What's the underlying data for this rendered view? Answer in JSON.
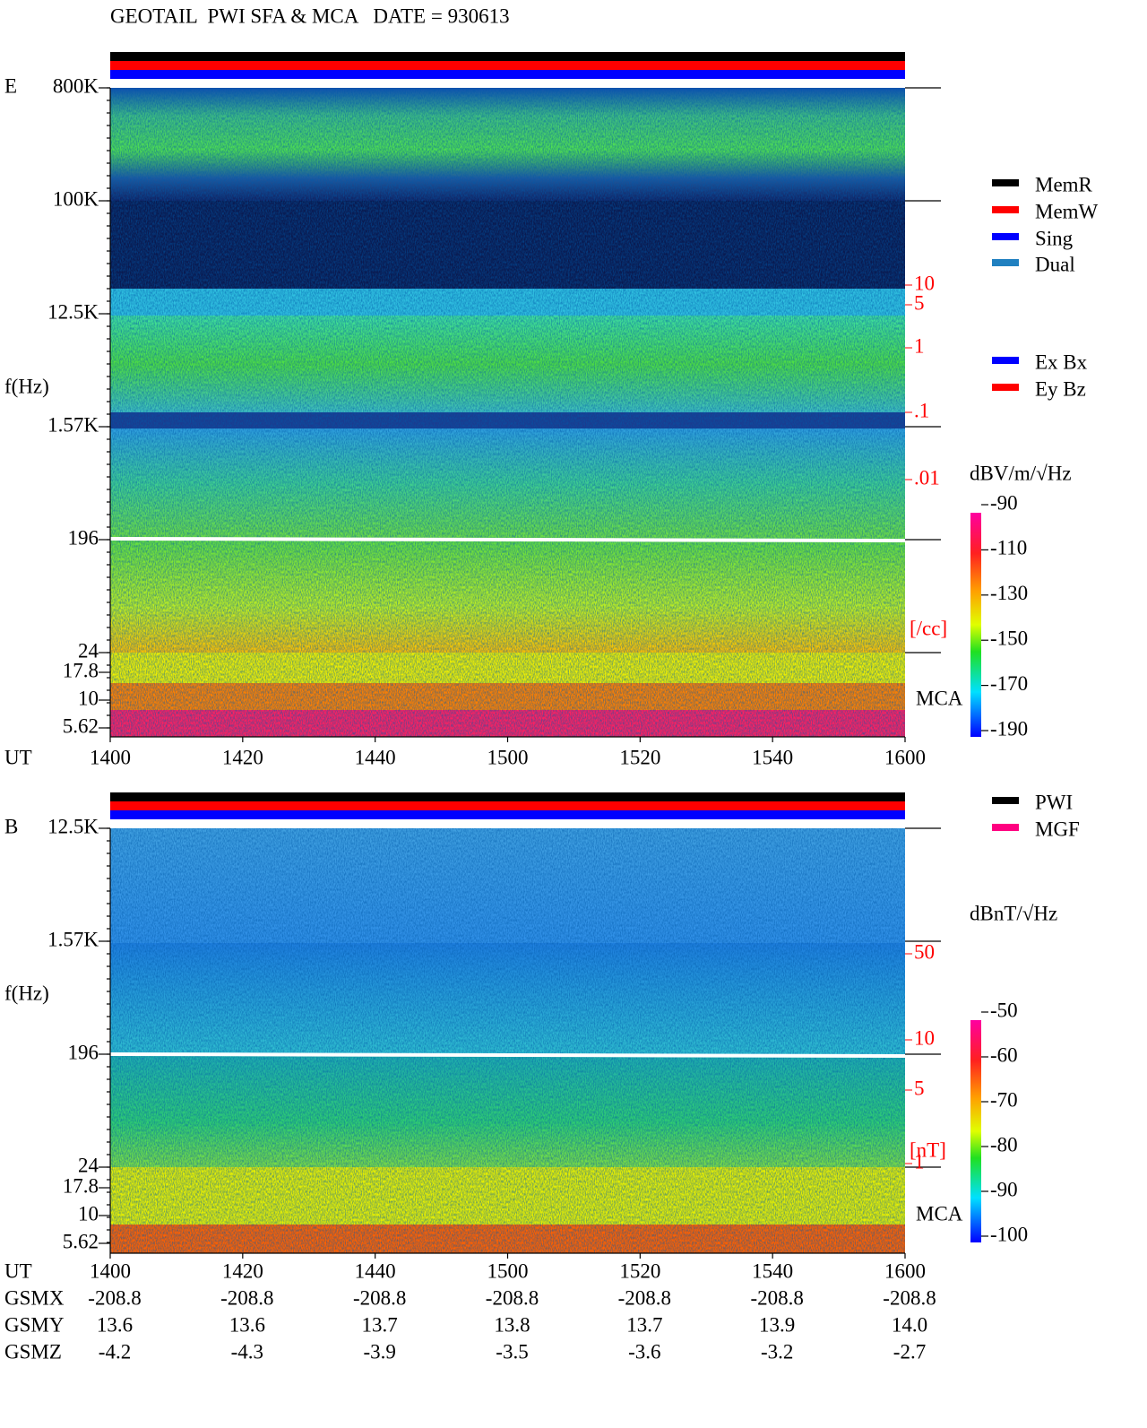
{
  "header": {
    "title": "GEOTAIL  PWI SFA & MCA   DATE = 930613"
  },
  "panels": [
    {
      "label": "E",
      "y_axis_label": "f(Hz)",
      "y_ticks": [
        "800K",
        "100K",
        "12.5K",
        "1.57K",
        "196",
        "24",
        "17.8",
        "10",
        "5.62"
      ],
      "right_scale": [
        "10",
        "5",
        "1",
        ".1",
        ".01"
      ],
      "right_unit": "[/cc]",
      "mca_label": "MCA",
      "x_axis_label": "UT",
      "x_ticks": [
        "1400",
        "1420",
        "1440",
        "1500",
        "1520",
        "1540",
        "1600"
      ],
      "legend": [
        {
          "label": "MemR",
          "color": "#000000"
        },
        {
          "label": "MemW",
          "color": "#ff0000"
        },
        {
          "label": "Sing",
          "color": "#0000ff"
        },
        {
          "label": "Dual",
          "color": "#2080c0"
        }
      ],
      "legend2": [
        {
          "label": "Ex Bx",
          "color": "#0000ff"
        },
        {
          "label": "Ey Bz",
          "color": "#ff0000"
        }
      ],
      "colorbar": {
        "unit": "dBV/m/√Hz",
        "ticks": [
          "-90",
          "-110",
          "-130",
          "-150",
          "-170",
          "-190"
        ]
      }
    },
    {
      "label": "B",
      "y_axis_label": "f(Hz)",
      "y_ticks": [
        "12.5K",
        "1.57K",
        "196",
        "24",
        "17.8",
        "10",
        "5.62"
      ],
      "right_scale": [
        "50",
        "10",
        "5",
        "1"
      ],
      "right_unit": "[nT]",
      "mca_label": "MCA",
      "x_axis_label": "UT",
      "x_ticks": [
        "1400",
        "1420",
        "1440",
        "1500",
        "1520",
        "1540",
        "1600"
      ],
      "legend": [
        {
          "label": "PWI",
          "color": "#000000"
        },
        {
          "label": "MGF",
          "color": "#ff0080"
        }
      ],
      "legend2": [],
      "colorbar": {
        "unit": "dBnT/√Hz",
        "ticks": [
          "-50",
          "-60",
          "-70",
          "-80",
          "-90",
          "-100"
        ]
      }
    }
  ],
  "orbit": {
    "rows": [
      {
        "label": "GSMX",
        "values": [
          "-208.8",
          "-208.8",
          "-208.8",
          "-208.8",
          "-208.8",
          "-208.8",
          "-208.8"
        ]
      },
      {
        "label": "GSMY",
        "values": [
          "13.6",
          "13.6",
          "13.7",
          "13.8",
          "13.7",
          "13.9",
          "14.0"
        ]
      },
      {
        "label": "GSMZ",
        "values": [
          "-4.2",
          "-4.3",
          "-3.9",
          "-3.5",
          "-3.6",
          "-3.2",
          "-2.7"
        ]
      }
    ]
  }
}
